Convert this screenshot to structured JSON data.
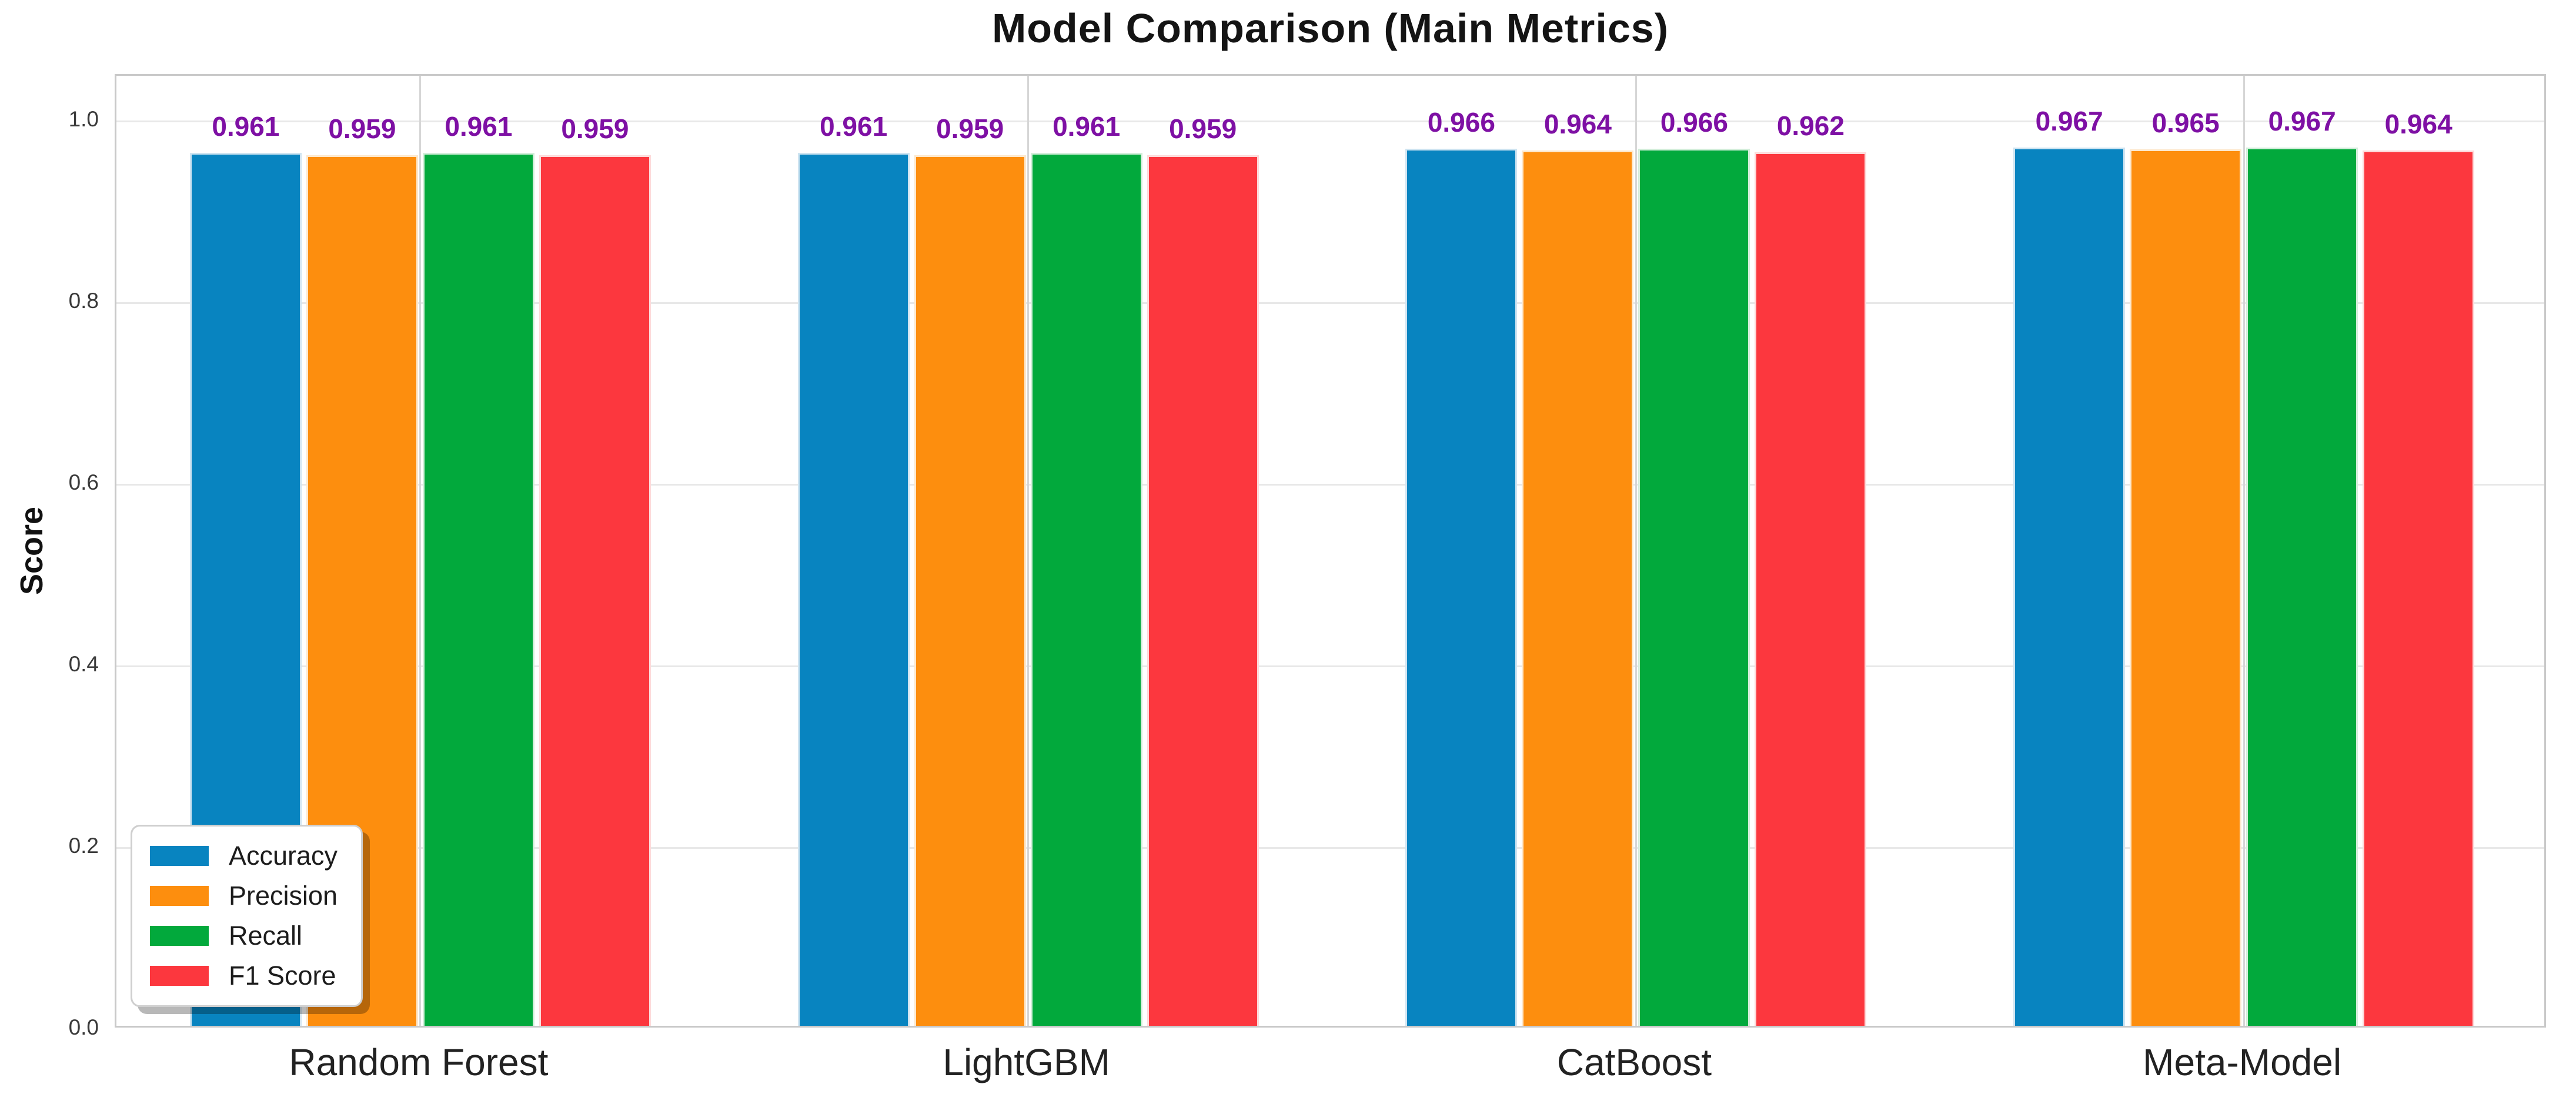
{
  "chart_data": {
    "type": "bar",
    "title": "Model Comparison (Main Metrics)",
    "ylabel": "Score",
    "xlabel": "",
    "categories": [
      "Random Forest",
      "LightGBM",
      "CatBoost",
      "Meta-Model"
    ],
    "series": [
      {
        "name": "Accuracy",
        "color": "#0884c0",
        "edge_color": "#cfe4f1",
        "values": [
          0.961,
          0.961,
          0.966,
          0.967
        ]
      },
      {
        "name": "Precision",
        "color": "#fd8e0e",
        "edge_color": "#fde8cd",
        "values": [
          0.959,
          0.959,
          0.964,
          0.965
        ]
      },
      {
        "name": "Recall",
        "color": "#02a93c",
        "edge_color": "#d4eedb",
        "values": [
          0.961,
          0.961,
          0.966,
          0.967
        ]
      },
      {
        "name": "F1 Score",
        "color": "#fc373e",
        "edge_color": "#fddada",
        "values": [
          0.959,
          0.959,
          0.962,
          0.964
        ]
      }
    ],
    "bar_labels": [
      [
        "0.961",
        "0.961",
        "0.966",
        "0.967"
      ],
      [
        "0.959",
        "0.959",
        "0.964",
        "0.965"
      ],
      [
        "0.961",
        "0.961",
        "0.966",
        "0.967"
      ],
      [
        "0.959",
        "0.959",
        "0.962",
        "0.964"
      ]
    ],
    "ylim": [
      0,
      1.05
    ],
    "yticks": [
      "0.0",
      "0.2",
      "0.4",
      "0.6",
      "0.8",
      "1.0"
    ],
    "grid": true,
    "legend_position": "lower left",
    "value_label_color": "#7e10a4",
    "grid_color_horizontal": "#e8e8e8",
    "grid_color_vertical": "#d6d6d6",
    "spine_color": "#c9c9c9"
  }
}
